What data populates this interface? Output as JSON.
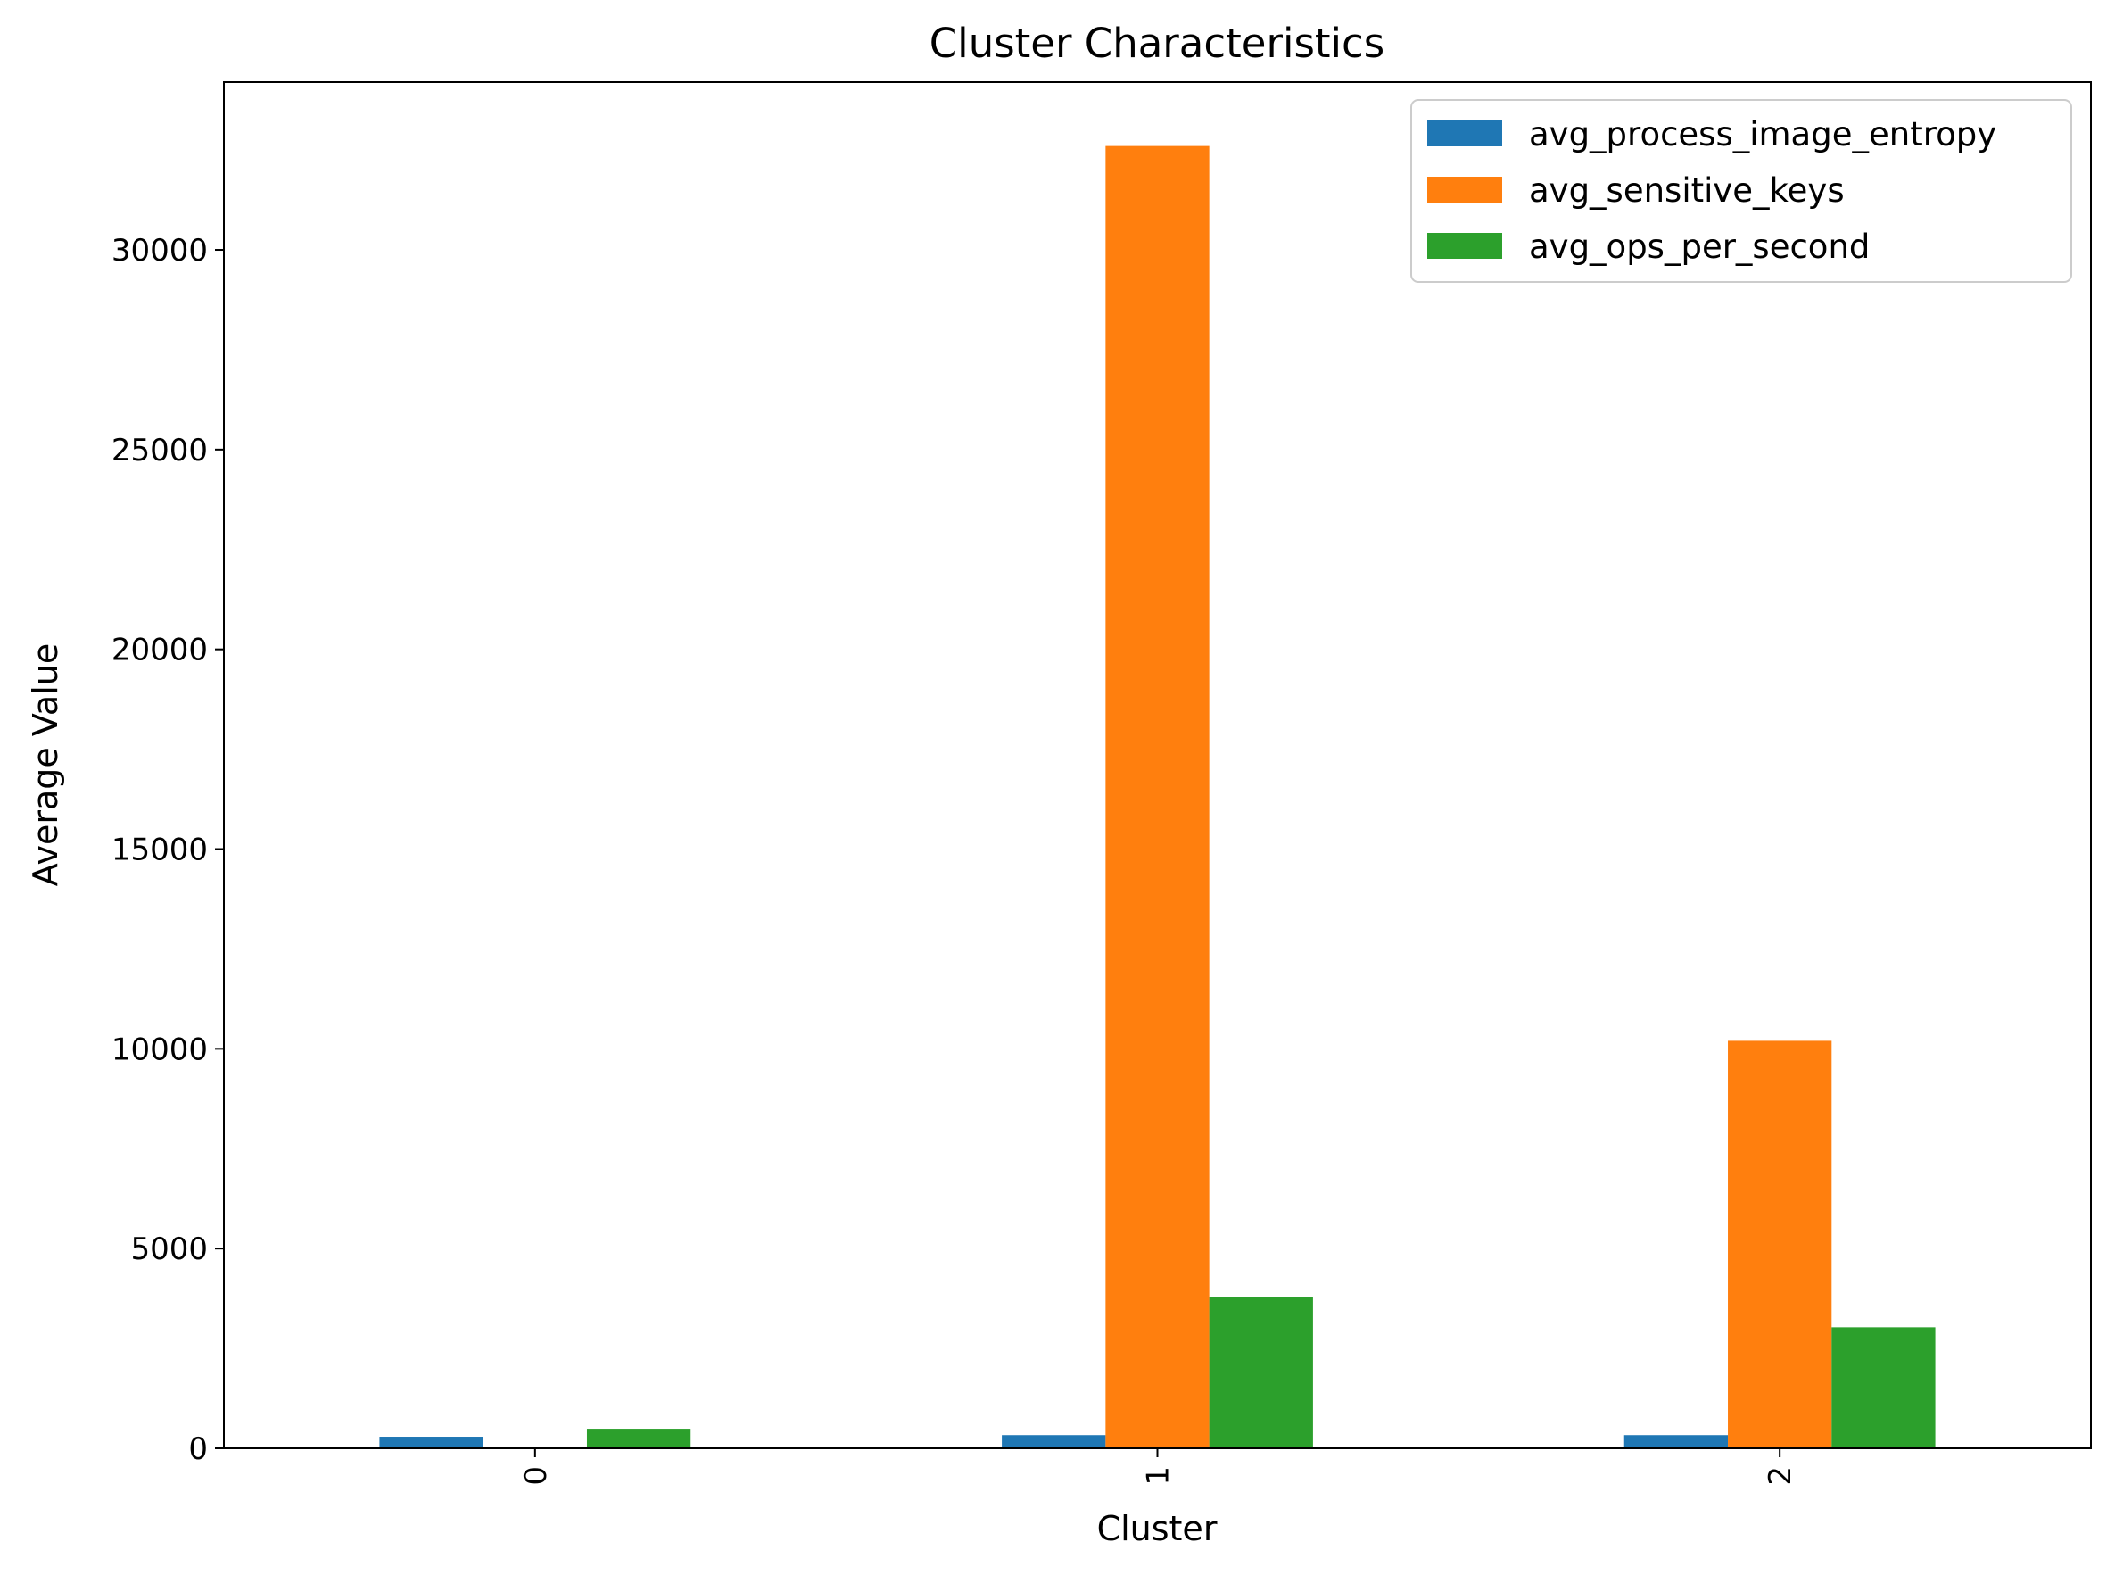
{
  "chart_data": {
    "type": "bar",
    "title": "Cluster Characteristics",
    "xlabel": "Cluster",
    "ylabel": "Average Value",
    "categories": [
      "0",
      "1",
      "2"
    ],
    "series": [
      {
        "name": "avg_process_image_entropy",
        "color": "#1f77b4",
        "values": [
          290,
          330,
          330
        ]
      },
      {
        "name": "avg_sensitive_keys",
        "color": "#ff7f0e",
        "values": [
          0,
          32600,
          10200
        ]
      },
      {
        "name": "avg_ops_per_second",
        "color": "#2ca02c",
        "values": [
          490,
          3780,
          3030
        ]
      }
    ],
    "ylim": [
      0,
      34200
    ],
    "yticks": [
      0,
      5000,
      10000,
      15000,
      20000,
      25000,
      30000
    ],
    "ytick_labels": [
      "0",
      "5000",
      "10000",
      "15000",
      "20000",
      "25000",
      "30000"
    ],
    "grid": false,
    "legend_position": "top-right",
    "xtick_rotation": "vertical"
  }
}
